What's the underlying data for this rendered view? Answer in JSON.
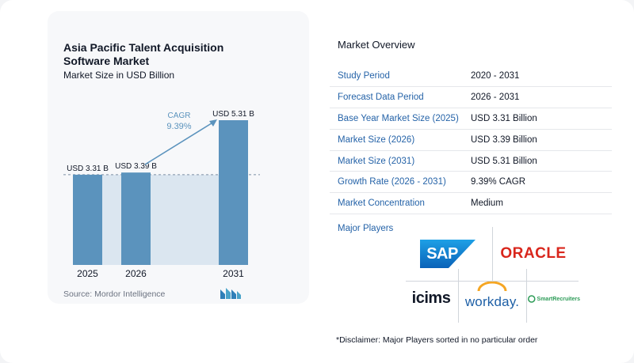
{
  "header": {
    "title_line1": "Asia Pacific Talent Acquisition",
    "title_line2": "Software Market",
    "subtitle": "Market Size in USD Billion"
  },
  "chart_data": {
    "type": "bar",
    "categories": [
      "2025",
      "2026",
      "2031"
    ],
    "values": [
      3.31,
      3.39,
      5.31
    ],
    "data_labels": [
      "USD 3.31 B",
      "USD 3.39 B",
      "USD 5.31 B"
    ],
    "title": "Asia Pacific Talent Acquisition Software Market",
    "ylabel": "",
    "ylim": [
      0,
      5.31
    ],
    "cagr_label": "CAGR",
    "cagr_value": "9.39%",
    "bar_color": "#5b93bd",
    "band_color": "#dbe6f0",
    "arrow_color": "#5b93bd"
  },
  "source": "Source: Mordor Intelligence",
  "overview": {
    "title": "Market Overview",
    "rows": [
      {
        "key": "Study Period",
        "value": "2020 - 2031"
      },
      {
        "key": "Forecast Data Period",
        "value": "2026 - 2031"
      },
      {
        "key": "Base Year Market Size (2025)",
        "value": "USD 3.31 Billion"
      },
      {
        "key": "Market Size (2026)",
        "value": "USD 3.39 Billion"
      },
      {
        "key": "Market Size (2031)",
        "value": "USD 5.31 Billion"
      },
      {
        "key": "Growth Rate (2026 - 2031)",
        "value": "9.39% CAGR"
      },
      {
        "key": "Market Concentration",
        "value": "Medium"
      }
    ]
  },
  "players": {
    "title": "Major Players",
    "logos": {
      "sap": "SAP",
      "oracle": "ORACLE",
      "icims": "icims",
      "workday": "workday.",
      "smartrecruiters": "SmartRecruiters"
    }
  },
  "disclaimer": "*Disclaimer: Major Players sorted in no particular order"
}
